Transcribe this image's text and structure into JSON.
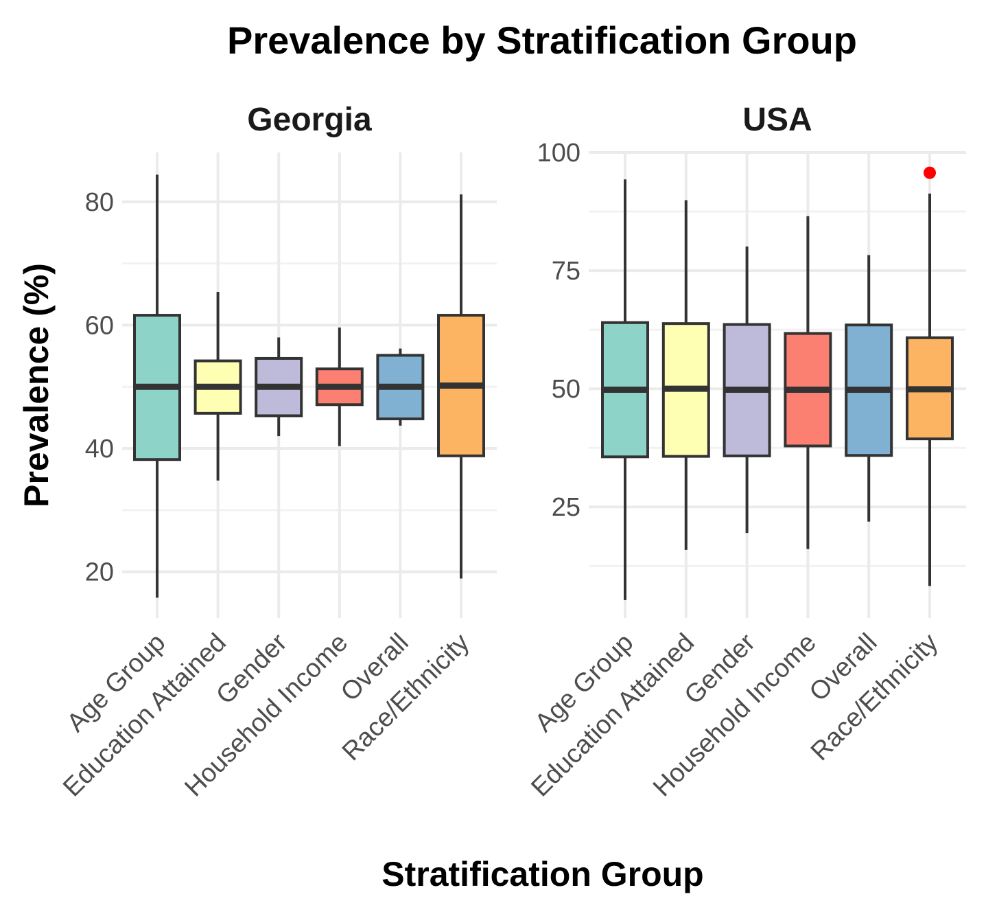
{
  "chart_data": {
    "type": "boxplot",
    "title": "Prevalence by Stratification Group",
    "xlabel": "Stratification Group",
    "ylabel": "Prevalence (%)",
    "categories": [
      "Age Group",
      "Education Attained",
      "Gender",
      "Household Income",
      "Overall",
      "Race/Ethnicity"
    ],
    "colors": [
      "#8DD3C7",
      "#FFFFB3",
      "#BEBADA",
      "#FB8072",
      "#80B1D3",
      "#FDB462"
    ],
    "outlier_color": "#FF0000",
    "grid": true,
    "facets": [
      {
        "name": "Georgia",
        "ylim": [
          12.5,
          88
        ],
        "yticks": [
          20,
          40,
          60,
          80
        ],
        "yticks_minor": [
          30,
          50,
          70
        ],
        "boxes": [
          {
            "min": 15.8,
            "q1": 38.2,
            "median": 50.0,
            "q3": 61.6,
            "max": 84.4,
            "outliers": []
          },
          {
            "min": 34.8,
            "q1": 45.7,
            "median": 50.0,
            "q3": 54.2,
            "max": 65.4,
            "outliers": []
          },
          {
            "min": 42.0,
            "q1": 45.3,
            "median": 50.0,
            "q3": 54.6,
            "max": 58.0,
            "outliers": []
          },
          {
            "min": 40.4,
            "q1": 47.1,
            "median": 50.0,
            "q3": 52.9,
            "max": 59.6,
            "outliers": []
          },
          {
            "min": 43.7,
            "q1": 44.8,
            "median": 50.0,
            "q3": 55.1,
            "max": 56.2,
            "outliers": []
          },
          {
            "min": 18.9,
            "q1": 38.8,
            "median": 50.2,
            "q3": 61.6,
            "max": 81.2,
            "outliers": []
          }
        ]
      },
      {
        "name": "USA",
        "ylim": [
          1.5,
          100
        ],
        "yticks": [
          25,
          50,
          75,
          100
        ],
        "yticks_minor": [
          12.5,
          37.5,
          62.5,
          87.5
        ],
        "boxes": [
          {
            "min": 5.3,
            "q1": 35.6,
            "median": 49.8,
            "q3": 64.0,
            "max": 94.3,
            "outliers": []
          },
          {
            "min": 15.9,
            "q1": 35.7,
            "median": 50.0,
            "q3": 63.8,
            "max": 89.9,
            "outliers": []
          },
          {
            "min": 19.5,
            "q1": 35.8,
            "median": 49.8,
            "q3": 63.6,
            "max": 80.1,
            "outliers": []
          },
          {
            "min": 16.1,
            "q1": 37.9,
            "median": 49.8,
            "q3": 61.7,
            "max": 86.5,
            "outliers": []
          },
          {
            "min": 21.9,
            "q1": 35.9,
            "median": 49.8,
            "q3": 63.5,
            "max": 78.3,
            "outliers": []
          },
          {
            "min": 8.3,
            "q1": 39.4,
            "median": 49.9,
            "q3": 60.8,
            "max": 91.3,
            "outliers": [
              95.7
            ]
          }
        ]
      }
    ]
  }
}
